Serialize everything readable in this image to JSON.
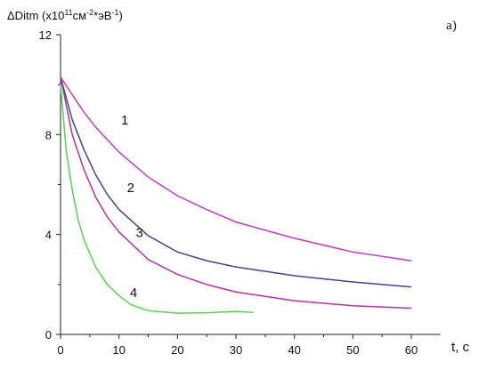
{
  "chart_data": {
    "type": "line",
    "ylabel_parts": [
      "ΔDitm  (x10",
      "11",
      "см",
      "-2",
      "*эВ",
      "-1",
      ")"
    ],
    "xlabel": "t, c",
    "corner_label": "a)",
    "xlim": [
      0,
      65
    ],
    "xticks": [
      0,
      10,
      20,
      30,
      40,
      50,
      60
    ],
    "ylim": [
      0,
      12
    ],
    "yticks": [
      0,
      4,
      8,
      12
    ],
    "series": [
      {
        "name": "1",
        "color": "#c13ac8",
        "x": [
          0,
          2,
          4,
          6,
          8,
          10,
          15,
          20,
          25,
          30,
          40,
          50,
          60
        ],
        "values": [
          10.3,
          9.6,
          8.9,
          8.3,
          7.8,
          7.3,
          6.3,
          5.55,
          5.0,
          4.5,
          3.85,
          3.3,
          2.95
        ]
      },
      {
        "name": "2",
        "color": "#4b3f8f",
        "x": [
          0,
          2,
          4,
          6,
          8,
          10,
          15,
          20,
          25,
          30,
          40,
          50,
          60
        ],
        "values": [
          10.3,
          8.6,
          7.4,
          6.4,
          5.6,
          5.0,
          3.95,
          3.3,
          2.95,
          2.7,
          2.35,
          2.1,
          1.9
        ]
      },
      {
        "name": "3",
        "color": "#b8309e",
        "x": [
          0,
          2,
          4,
          6,
          8,
          10,
          15,
          20,
          25,
          30,
          40,
          50,
          60
        ],
        "values": [
          10.3,
          8.0,
          6.6,
          5.5,
          4.7,
          4.1,
          3.0,
          2.4,
          2.0,
          1.7,
          1.35,
          1.15,
          1.05
        ]
      },
      {
        "name": "4",
        "color": "#4fd84a",
        "x": [
          0,
          1,
          2,
          3,
          4,
          6,
          8,
          10,
          12,
          15,
          20,
          25,
          30,
          33
        ],
        "values": [
          10.0,
          7.3,
          5.8,
          4.6,
          3.8,
          2.7,
          2.0,
          1.55,
          1.2,
          0.95,
          0.85,
          0.87,
          0.92,
          0.88
        ]
      }
    ]
  }
}
